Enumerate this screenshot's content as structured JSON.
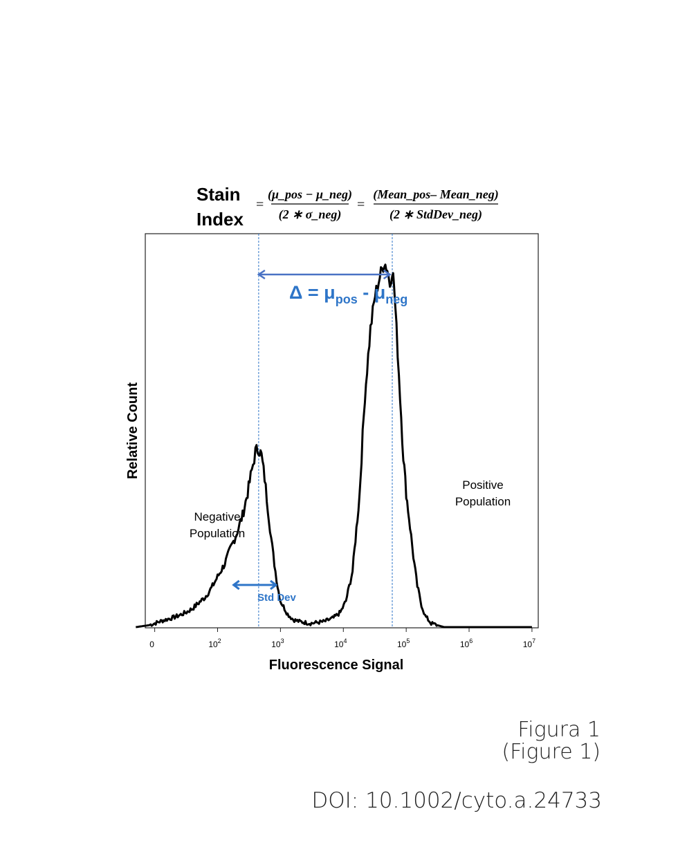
{
  "chart_data": {
    "type": "line",
    "title": "",
    "xlabel": "Fluorescence Signal",
    "ylabel": "Relative Count",
    "x_scale": "log",
    "x_ticks": [
      {
        "value": 0,
        "base": "0",
        "exp": ""
      },
      {
        "value": 100,
        "base": "10",
        "exp": "2"
      },
      {
        "value": 1000,
        "base": "10",
        "exp": "3"
      },
      {
        "value": 10000,
        "base": "10",
        "exp": "4"
      },
      {
        "value": 100000,
        "base": "10",
        "exp": "5"
      },
      {
        "value": 1000000,
        "base": "10",
        "exp": "6"
      },
      {
        "value": 10000000,
        "base": "10",
        "exp": "7"
      }
    ],
    "xlim_log10": [
      0.85,
      7.1
    ],
    "ylim": [
      0,
      100
    ],
    "grid": false,
    "line_color": "#000000",
    "accent_color": "#2e75c8",
    "formula": {
      "label_line1": "Stain",
      "label_line2": "Index",
      "eq": "=",
      "frac1_num": "(μ_pos − μ_neg)",
      "frac1_den": "(2 ∗ σ_neg)",
      "frac2_num": "(Mean_pos– Mean_neg)",
      "frac2_den": "(2 ∗ StdDev_neg)"
    },
    "annotations": {
      "delta": {
        "text": "Δ = μ",
        "sub1": "pos",
        "mid": " - μ",
        "sub2": "neg",
        "x_from": 450,
        "x_to": 55000
      },
      "std_dev": {
        "text": "Std Dev",
        "x_from": 180,
        "x_to": 850
      },
      "negative": {
        "line1": "Negative",
        "line2": "Population"
      },
      "positive": {
        "line1": "Positive",
        "line2": "Population"
      },
      "mean_neg": 450,
      "mean_pos": 60000
    },
    "series": [
      {
        "points": [
          [
            5,
            0
          ],
          [
            8,
            0.5
          ],
          [
            10,
            1
          ],
          [
            12,
            1.5
          ],
          [
            15,
            2
          ],
          [
            20,
            2.6
          ],
          [
            25,
            3.2
          ],
          [
            32,
            4
          ],
          [
            40,
            5
          ],
          [
            50,
            6.5
          ],
          [
            63,
            8
          ],
          [
            80,
            10.5
          ],
          [
            100,
            13.5
          ],
          [
            130,
            17
          ],
          [
            160,
            21
          ],
          [
            200,
            25
          ],
          [
            250,
            30
          ],
          [
            300,
            36
          ],
          [
            350,
            42
          ],
          [
            400,
            47
          ],
          [
            450,
            48
          ],
          [
            500,
            46
          ],
          [
            560,
            40
          ],
          [
            630,
            32
          ],
          [
            710,
            24
          ],
          [
            800,
            17
          ],
          [
            900,
            11
          ],
          [
            1000,
            7
          ],
          [
            1300,
            3.5
          ],
          [
            1600,
            2
          ],
          [
            2000,
            1.5
          ],
          [
            3000,
            1
          ],
          [
            5000,
            1.5
          ],
          [
            7000,
            2.5
          ],
          [
            9000,
            4
          ],
          [
            11000,
            7
          ],
          [
            14000,
            15
          ],
          [
            18000,
            35
          ],
          [
            22000,
            62
          ],
          [
            27000,
            80
          ],
          [
            32000,
            89
          ],
          [
            38000,
            94
          ],
          [
            45000,
            98
          ],
          [
            50000,
            96
          ],
          [
            55000,
            92
          ],
          [
            60000,
            96
          ],
          [
            64000,
            92
          ],
          [
            70000,
            80
          ],
          [
            80000,
            62
          ],
          [
            90000,
            46
          ],
          [
            100000,
            36
          ],
          [
            115000,
            27
          ],
          [
            130000,
            19
          ],
          [
            150000,
            11
          ],
          [
            175000,
            6
          ],
          [
            200000,
            3
          ],
          [
            250000,
            1
          ],
          [
            400000,
            0
          ],
          [
            10000000,
            0
          ]
        ]
      }
    ]
  },
  "captions": {
    "figure": "Figura 1",
    "figure_en": "(Figure 1)",
    "doi": "DOI: 10.1002/cyto.a.24733"
  }
}
